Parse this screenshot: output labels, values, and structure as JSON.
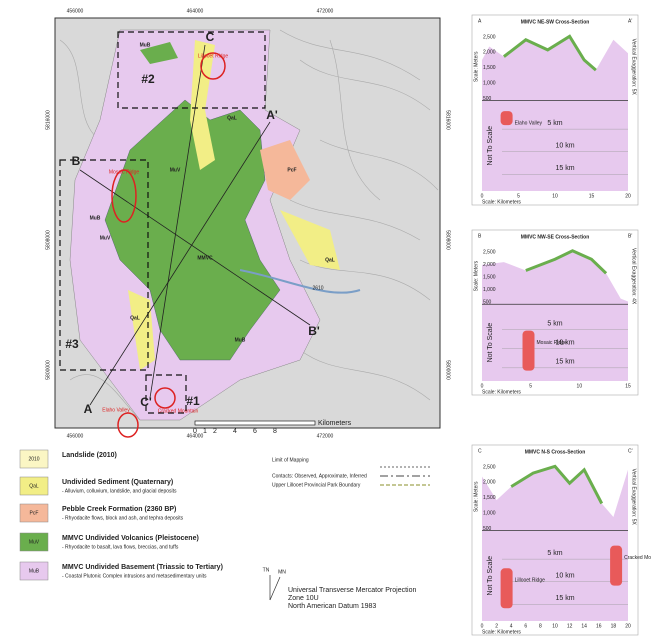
{
  "map": {
    "grid_x": [
      "456000",
      "464000",
      "472000"
    ],
    "grid_y": [
      "5816000",
      "5808000",
      "5800000"
    ],
    "units": [
      "MuB",
      "QaL",
      "MuV",
      "PcF",
      "MMVC",
      "MuV",
      "MuB",
      "QaL",
      "QaL",
      "MuB"
    ],
    "section_ends": [
      "A",
      "A'",
      "B",
      "B'",
      "C",
      "C'"
    ],
    "areas": [
      "#1",
      "#2",
      "#3"
    ],
    "places": [
      "Lillooet Ridge",
      "Mosaic Ridge",
      "Elaho Valley",
      "Cracked Mountain"
    ],
    "elevation": "2610",
    "scale": {
      "ticks": [
        "0",
        "1",
        "2",
        "4",
        "6",
        "8"
      ],
      "unit": "Kilometers"
    }
  },
  "legend": {
    "units": [
      {
        "code": "2010",
        "title": "Landslide (2010)",
        "desc": ""
      },
      {
        "code": "QaL",
        "title": "Undivided Sediment (Quaternary)",
        "desc": "- Alluvium, colluvium, landslide, and glacial deposits"
      },
      {
        "code": "PcF",
        "title": "Pebble Creek Formation (2360 BP)",
        "desc": "- Rhyodacite flows, block and ash, and tephra deposits"
      },
      {
        "code": "MuV",
        "title": "MMVC Undivided Volcanics (Pleistocene)",
        "desc": "- Rhyodacite to basalt, lava flows, breccias, and tuffs"
      },
      {
        "code": "MuB",
        "title": "MMVC Undivided Basement (Triassic to Tertiary)",
        "desc": "- Coastal Plutonic Complex intrusions and metasedimentary units"
      }
    ],
    "lines": [
      "Limit of Mapping",
      "Contacts: Observed, Approximate, Inferred",
      "Upper Lillooet Provincial Park Boundary"
    ],
    "north": [
      "TN",
      "MN"
    ],
    "projection": [
      "Universal Transverse Mercator Projection",
      "Zone 10U",
      "North American Datum 1983"
    ]
  },
  "sections": [
    {
      "title": "MMVC NE-SW Cross-Section",
      "start": "A",
      "end": "A'",
      "yticks": [
        "2,500",
        "2,000",
        "1,500",
        "1,000",
        "500"
      ],
      "xticks": [
        "0",
        "5",
        "10",
        "15",
        "20"
      ],
      "y_label": "Scale: Meters",
      "exag": "Vertical Exaggeration: 5X",
      "depths": [
        "5 km",
        "10 km",
        "15 km"
      ],
      "side": "Not To Scale",
      "scale": "Scale: Kilometers",
      "places": [
        "Elaho Valley"
      ]
    },
    {
      "title": "MMVC NW-SE Cross-Section",
      "start": "B",
      "end": "B'",
      "yticks": [
        "2,500",
        "2,000",
        "1,500",
        "1,000",
        "500"
      ],
      "xticks": [
        "0",
        "5",
        "10",
        "15"
      ],
      "y_label": "Scale: Meters",
      "exag": "Vertical Exaggeration: 4X",
      "depths": [
        "5 km",
        "10 km",
        "15 km"
      ],
      "side": "Not To Scale",
      "scale": "Scale: Kilometers",
      "places": [
        "Mosaic Ridge"
      ]
    },
    {
      "title": "MMVC N-S Cross-Section",
      "start": "C",
      "end": "C'",
      "yticks": [
        "2,500",
        "2,000",
        "1,500",
        "1,000",
        "500"
      ],
      "xticks": [
        "0",
        "2",
        "4",
        "6",
        "8",
        "10",
        "12",
        "14",
        "16",
        "18",
        "20"
      ],
      "y_label": "Scale: Meters",
      "exag": "Vertical Exaggeration: 5X",
      "depths": [
        "5 km",
        "10 km",
        "15 km"
      ],
      "side": "Not To Scale",
      "scale": "Scale: Kilometers",
      "places": [
        "Lillooet Ridge",
        "Cracked Mountain"
      ]
    }
  ]
}
